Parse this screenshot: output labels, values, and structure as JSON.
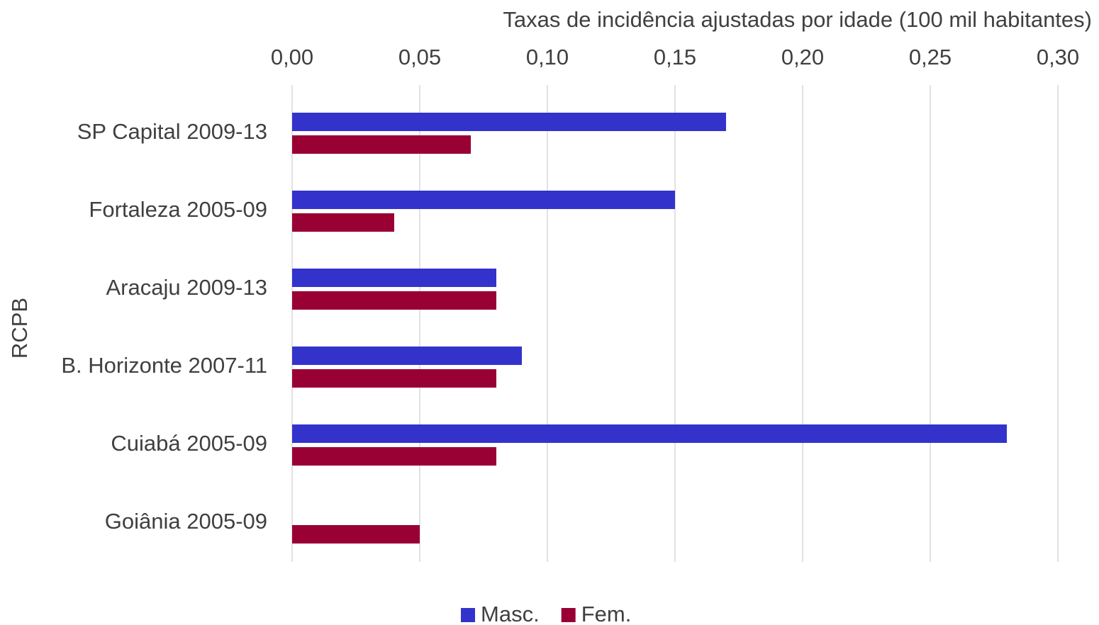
{
  "chart_data": {
    "type": "bar",
    "orientation": "horizontal",
    "title": "Taxas de incidência ajustadas por idade (100 mil habitantes)",
    "y_label": "RCPB",
    "categories": [
      "SP Capital 2009-13",
      "Fortaleza 2005-09",
      "Aracaju 2009-13",
      "B. Horizonte 2007-11",
      "Cuiabá 2005-09",
      "Goiânia 2005-09"
    ],
    "series": [
      {
        "name": "Masc.",
        "color": "#3333cc",
        "values": [
          0.17,
          0.15,
          0.08,
          0.09,
          0.28,
          0
        ]
      },
      {
        "name": "Fem.",
        "color": "#990033",
        "values": [
          0.07,
          0.04,
          0.08,
          0.08,
          0.08,
          0.05
        ]
      }
    ],
    "xlim": [
      0,
      0.3
    ],
    "xticks": [
      {
        "value": 0,
        "label": "0,00"
      },
      {
        "value": 0.05,
        "label": "0,05"
      },
      {
        "value": 0.1,
        "label": "0,10"
      },
      {
        "value": 0.15,
        "label": "0,15"
      },
      {
        "value": 0.2,
        "label": "0,20"
      },
      {
        "value": 0.25,
        "label": "0,25"
      },
      {
        "value": 0.3,
        "label": "0,30"
      }
    ],
    "grid": true,
    "legend": "bottom"
  }
}
